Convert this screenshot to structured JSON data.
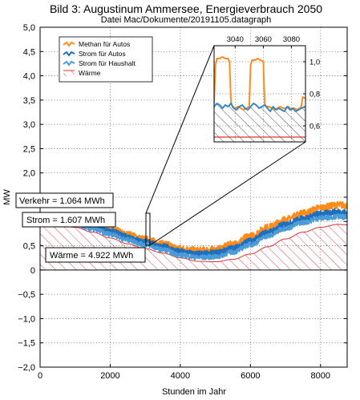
{
  "chart_data": {
    "type": "area",
    "title": "Bild 3: Augustinum Ammersee, Energieverbrauch 2050",
    "subtitle": "Datei Mac/Dokumente/20191105.datagraph",
    "xlabel": "Stunden im Jahr",
    "ylabel": "MW",
    "xlim": [
      0,
      8760
    ],
    "ylim": [
      -2.0,
      5.0
    ],
    "x_ticks": [
      0,
      2000,
      4000,
      6000,
      8000
    ],
    "x_tick_labels": [
      "0",
      "2000",
      "4000",
      "6000",
      "8000"
    ],
    "y_ticks": [
      5.0,
      4.5,
      4.0,
      3.5,
      3.0,
      2.5,
      2.0,
      1.5,
      1.0,
      0.5,
      0,
      -0.5,
      -1.0,
      -1.5,
      -2.0
    ],
    "y_tick_labels": [
      "5,0",
      "4,5",
      "4,0",
      "3,5",
      "3,0",
      "2,5",
      "2,0",
      "1,5",
      "1,0",
      "0,5",
      "0",
      "−0,5",
      "−1,0",
      "−1,5",
      "−2,0"
    ],
    "grid": true,
    "legend_position": "top-left",
    "series": [
      {
        "name": "Methan für Autos",
        "color": "#ff8c1a",
        "style": "line",
        "x": [
          0,
          500,
          1000,
          1500,
          2000,
          2500,
          3000,
          3500,
          4000,
          4500,
          5000,
          5500,
          6000,
          6500,
          7000,
          7500,
          8000,
          8500,
          8760
        ],
        "y": [
          1.1,
          1.12,
          1.05,
          0.95,
          0.85,
          0.73,
          0.63,
          0.54,
          0.44,
          0.4,
          0.42,
          0.53,
          0.7,
          0.88,
          1.04,
          1.17,
          1.28,
          1.34,
          1.33
        ]
      },
      {
        "name": "Strom für Autos",
        "color": "#1f6fbf",
        "style": "line",
        "x": [
          0,
          500,
          1000,
          1500,
          2000,
          2500,
          3000,
          3500,
          4000,
          4500,
          5000,
          5500,
          6000,
          6500,
          7000,
          7500,
          8000,
          8500,
          8760
        ],
        "y": [
          1.05,
          1.07,
          1.0,
          0.9,
          0.8,
          0.68,
          0.58,
          0.48,
          0.38,
          0.33,
          0.35,
          0.45,
          0.6,
          0.78,
          0.94,
          1.06,
          1.16,
          1.2,
          1.18
        ]
      },
      {
        "name": "Strom für Haushalt",
        "color": "#4a9bd6",
        "style": "line",
        "x": [
          0,
          500,
          1000,
          1500,
          2000,
          2500,
          3000,
          3500,
          4000,
          4500,
          5000,
          5500,
          6000,
          6500,
          7000,
          7500,
          8000,
          8500,
          8760
        ],
        "y": [
          0.99,
          1.01,
          0.94,
          0.84,
          0.74,
          0.62,
          0.52,
          0.42,
          0.31,
          0.26,
          0.27,
          0.37,
          0.52,
          0.7,
          0.86,
          0.98,
          1.07,
          1.1,
          1.08
        ]
      },
      {
        "name": "Wärme",
        "color": "#e03030",
        "style": "hatched-area",
        "x": [
          0,
          500,
          1000,
          1500,
          2000,
          2500,
          3000,
          3500,
          4000,
          4500,
          5000,
          5500,
          6000,
          6500,
          7000,
          7500,
          8000,
          8500,
          8760
        ],
        "y": [
          0.92,
          0.93,
          0.88,
          0.78,
          0.66,
          0.54,
          0.44,
          0.35,
          0.25,
          0.18,
          0.17,
          0.22,
          0.33,
          0.48,
          0.64,
          0.78,
          0.88,
          0.94,
          0.93
        ]
      }
    ],
    "annotations": [
      {
        "text": "Verkehr = 1.064 MWh"
      },
      {
        "text": "Strom = 1.607 MWh"
      },
      {
        "text": "Wärme = 4.922 MWh"
      }
    ],
    "inset": {
      "xlim": [
        3025,
        3090
      ],
      "ylim": [
        0.5,
        1.1
      ],
      "x_ticks": [
        3040,
        3060,
        3080
      ],
      "x_tick_labels": [
        "3040",
        "3060",
        "3080"
      ],
      "y_ticks": [
        1.0,
        0.8,
        0.6
      ],
      "y_tick_labels": [
        "1,0",
        "0,8",
        "0,6"
      ],
      "methan": {
        "x": [
          3025,
          3026,
          3027,
          3029,
          3031,
          3033,
          3035,
          3036,
          3037,
          3038,
          3040,
          3042,
          3044,
          3046,
          3048,
          3050,
          3051,
          3052,
          3054,
          3056,
          3058,
          3060,
          3061,
          3062,
          3064,
          3066,
          3068,
          3070,
          3072,
          3074,
          3076,
          3078,
          3080,
          3082,
          3084,
          3086,
          3087,
          3088,
          3090
        ],
        "y": [
          0.74,
          0.98,
          1.02,
          1.02,
          1.03,
          1.02,
          1.02,
          1.0,
          0.75,
          0.72,
          0.71,
          0.72,
          0.71,
          0.7,
          0.71,
          0.72,
          0.98,
          1.01,
          1.01,
          1.02,
          1.01,
          1.0,
          0.74,
          0.72,
          0.72,
          0.71,
          0.7,
          0.71,
          0.72,
          0.71,
          0.71,
          0.72,
          0.7,
          0.71,
          0.7,
          0.71,
          0.72,
          0.78,
          0.77
        ]
      },
      "strom": {
        "x": [
          3025,
          3027,
          3029,
          3031,
          3033,
          3035,
          3037,
          3039,
          3041,
          3043,
          3045,
          3047,
          3049,
          3051,
          3053,
          3055,
          3057,
          3059,
          3061,
          3063,
          3065,
          3067,
          3069,
          3071,
          3073,
          3075,
          3077,
          3079,
          3081,
          3083,
          3085,
          3087,
          3090
        ],
        "y": [
          0.72,
          0.74,
          0.73,
          0.71,
          0.73,
          0.72,
          0.74,
          0.71,
          0.7,
          0.72,
          0.73,
          0.71,
          0.7,
          0.72,
          0.74,
          0.73,
          0.71,
          0.72,
          0.73,
          0.71,
          0.69,
          0.72,
          0.7,
          0.71,
          0.7,
          0.69,
          0.72,
          0.7,
          0.71,
          0.69,
          0.7,
          0.71,
          0.72
        ]
      },
      "waerme": {
        "x": [
          3025,
          3040,
          3060,
          3080,
          3090
        ],
        "y": [
          0.53,
          0.53,
          0.53,
          0.53,
          0.53
        ]
      }
    }
  }
}
